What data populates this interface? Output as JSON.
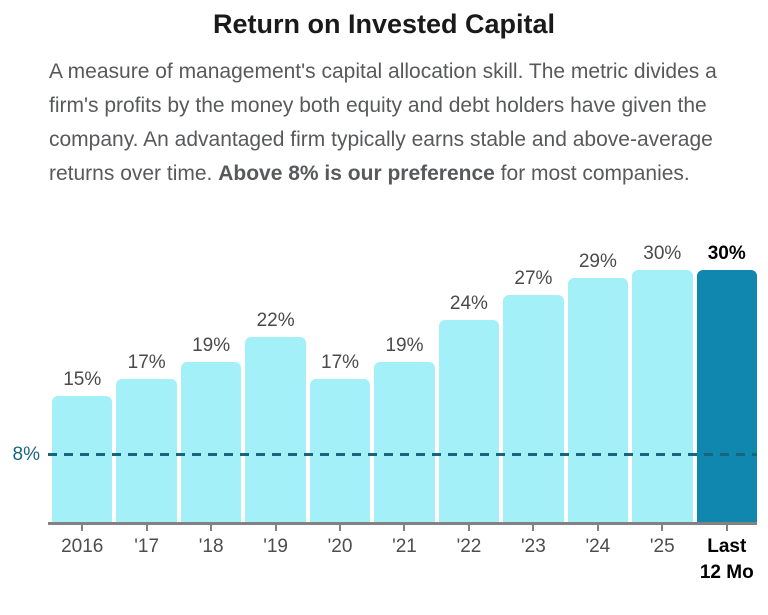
{
  "page": {
    "title": "Return on Invested Capital",
    "description": {
      "part1": "A measure of management's capital allocation skill. The metric divides a firm's profits by the money both equity and debt holders have given the company. An advantaged firm typically earns stable and above-average returns over time. ",
      "bold": "Above 8% is our preference",
      "part2": " for most companies."
    }
  },
  "chart_data": {
    "type": "bar",
    "title": "Return on Invested Capital",
    "categories": [
      "2016",
      "'17",
      "'18",
      "'19",
      "'20",
      "'21",
      "'22",
      "'23",
      "'24",
      "'25",
      "Last 12 Mo"
    ],
    "values": [
      15,
      17,
      19,
      22,
      17,
      19,
      24,
      27,
      29,
      30,
      30
    ],
    "value_labels": [
      "15%",
      "17%",
      "19%",
      "22%",
      "17%",
      "19%",
      "24%",
      "27%",
      "29%",
      "30%",
      "30%"
    ],
    "highlight_index": 10,
    "reference_line": {
      "value": 8,
      "label": "8%"
    },
    "ylim": [
      0,
      33
    ],
    "xlabel": "",
    "ylabel": "",
    "grid": false,
    "legend": "none",
    "colors": {
      "bar": "#a4f0f9",
      "highlight_bar": "#0f87af",
      "reference": "#17657f",
      "axis": "#828282",
      "value_label": "#4a4a4a",
      "highlight_label": "#000000",
      "tick_label": "#4d4d4d"
    }
  }
}
